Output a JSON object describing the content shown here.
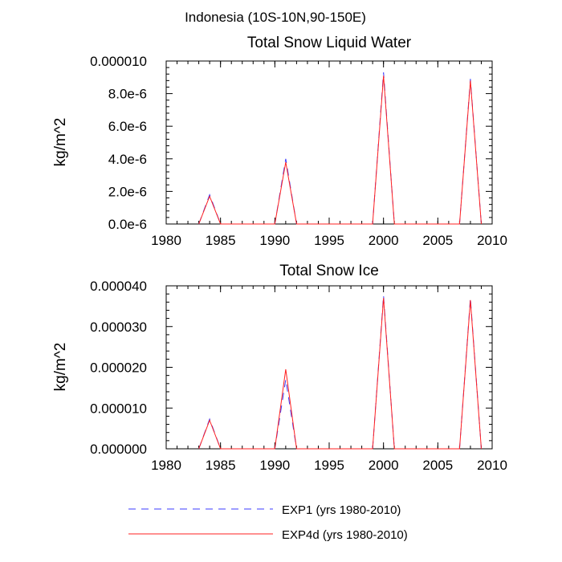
{
  "figure_title": "Indonesia (10S-10N,90-150E)",
  "legend": {
    "exp1": "EXP1 (yrs 1980-2010)",
    "exp4d": "EXP4d (yrs 1980-2010)"
  },
  "colors": {
    "exp1": "#3b3bff",
    "exp4d": "#ff2020"
  },
  "chart_data": [
    {
      "type": "line",
      "title": "Total Snow Liquid Water",
      "xlabel": "",
      "ylabel": "kg/m^2",
      "xlim": [
        1980,
        2010
      ],
      "ylim": [
        0,
        1e-05
      ],
      "xticks": [
        1980,
        1985,
        1990,
        1995,
        2000,
        2005,
        2010
      ],
      "yticks": [
        0,
        2e-06,
        4e-06,
        6e-06,
        8e-06,
        1e-05
      ],
      "yticklabels": [
        "0.0e-6",
        "2.0e-6",
        "4.0e-6",
        "6.0e-6",
        "8.0e-6",
        "0.000010"
      ],
      "x": [
        1983,
        1984,
        1985,
        1990,
        1991,
        1992,
        1999,
        2000,
        2001,
        2007,
        2008,
        2009
      ],
      "series": [
        {
          "name": "EXP1 (yrs 1980-2010)",
          "values": [
            0,
            1.8e-06,
            0,
            0,
            4e-06,
            0,
            0,
            9.3e-06,
            0,
            0,
            8.9e-06,
            0
          ]
        },
        {
          "name": "EXP4d (yrs 1980-2010)",
          "values": [
            0,
            1.7e-06,
            0,
            0,
            3.8e-06,
            0,
            0,
            9.1e-06,
            0,
            0,
            8.8e-06,
            0
          ]
        }
      ]
    },
    {
      "type": "line",
      "title": "Total Snow Ice",
      "xlabel": "",
      "ylabel": "kg/m^2",
      "xlim": [
        1980,
        2010
      ],
      "ylim": [
        0,
        4e-05
      ],
      "xticks": [
        1980,
        1985,
        1990,
        1995,
        2000,
        2005,
        2010
      ],
      "yticks": [
        0,
        1e-05,
        2e-05,
        3e-05,
        4e-05
      ],
      "yticklabels": [
        "0.000000",
        "0.000010",
        "0.000020",
        "0.000030",
        "0.000040"
      ],
      "x": [
        1983,
        1984,
        1985,
        1990,
        1991,
        1992,
        1999,
        2000,
        2001,
        2007,
        2008,
        2009
      ],
      "series": [
        {
          "name": "EXP1 (yrs 1980-2010)",
          "values": [
            0,
            7.3e-06,
            0,
            0,
            1.7e-05,
            0,
            0,
            3.76e-05,
            0,
            0,
            3.7e-05,
            0
          ]
        },
        {
          "name": "EXP4d (yrs 1980-2010)",
          "values": [
            0,
            7e-06,
            0,
            0,
            1.95e-05,
            0,
            0,
            3.7e-05,
            0,
            0,
            3.65e-05,
            0
          ]
        }
      ]
    }
  ]
}
